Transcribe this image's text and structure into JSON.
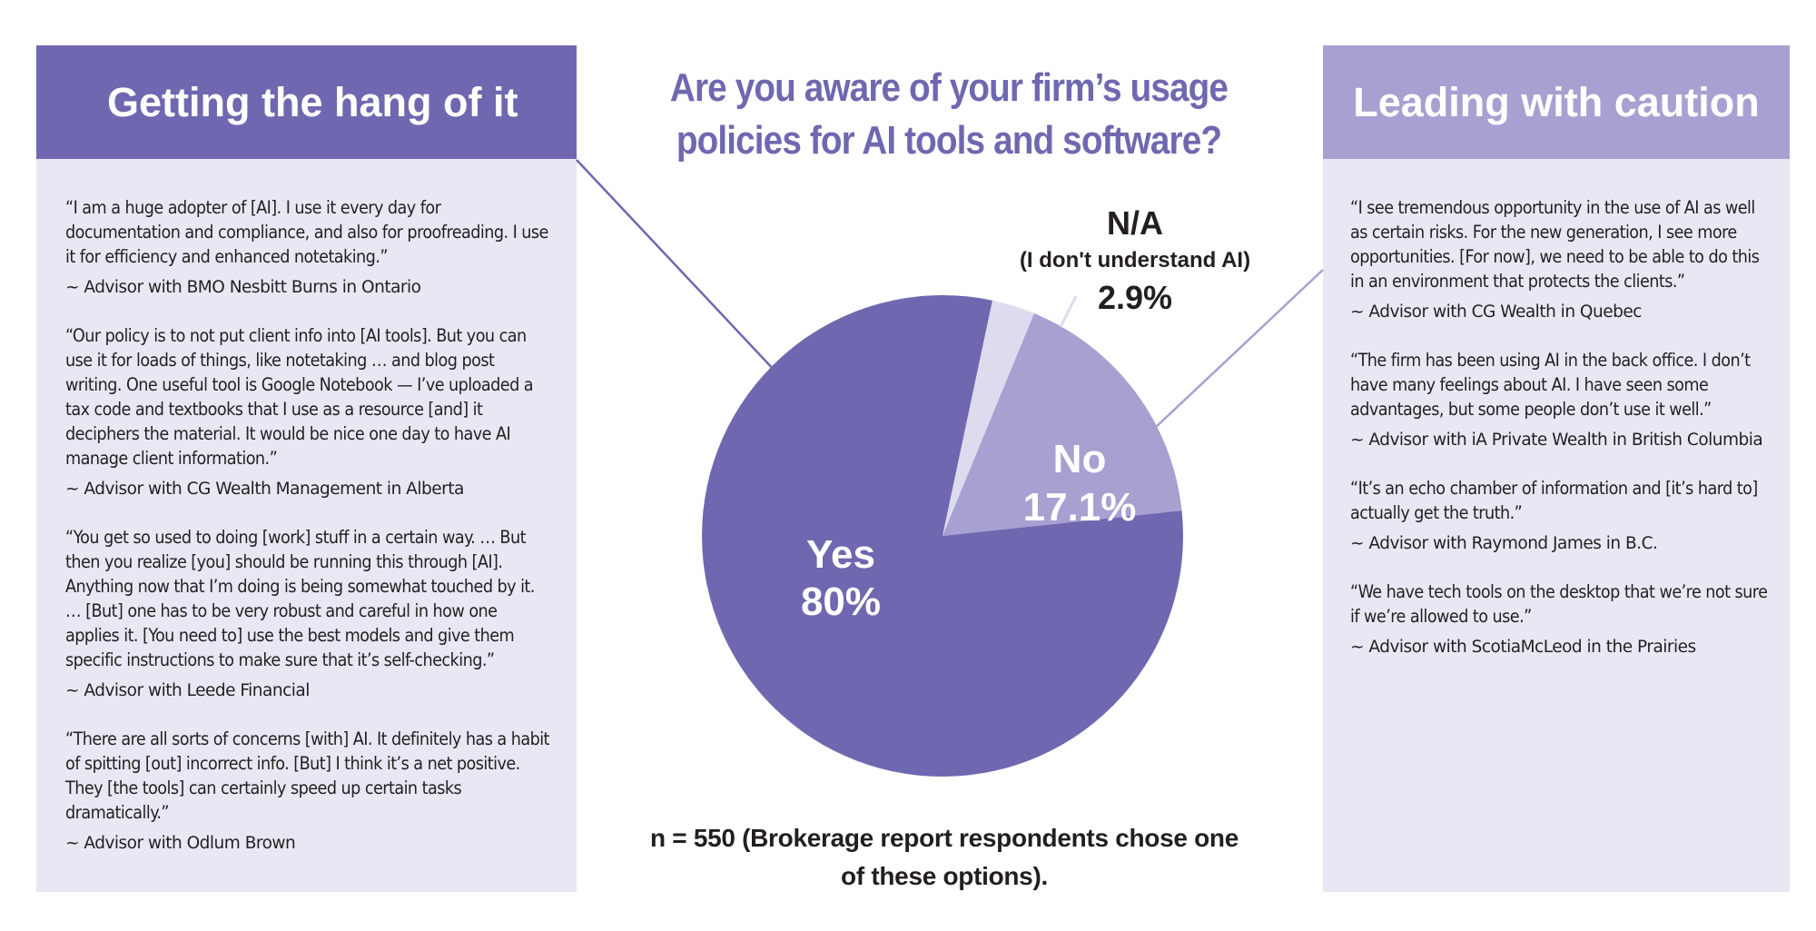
{
  "left_panel": {
    "heading": "Getting the hang of it",
    "quotes": [
      {
        "text": "“I am a huge adopter of [AI]. I use it every day for documentation and compliance, and also for proofreading. I use it for efficiency and enhanced notetaking.”",
        "attribution": "~ Advisor with BMO Nesbitt Burns in Ontario"
      },
      {
        "text": "“Our policy is to not put client info into [AI tools]. But you can use it for loads of things, like notetaking … and blog post writing. One useful tool is Google Notebook — I’ve uploaded a tax code and textbooks that I use as a resource [and] it deciphers the material. It would be nice one day to have AI manage client information.”",
        "attribution": "~ Advisor with CG Wealth Management in Alberta"
      },
      {
        "text": "“You get so used to doing [work] stuff in a certain way. … But then you realize [you] should be running this through [AI]. Anything now that I’m doing is being somewhat touched by it. … [But] one has to be very robust and careful in how one applies it. [You need to] use the best models and give them specific instructions to make sure that it’s self-checking.”",
        "attribution": "~ Advisor with Leede Financial"
      },
      {
        "text": "“There are all sorts of concerns [with] AI. It definitely has a habit of spitting [out] incorrect info. [But] I think it’s a net positive. They [the tools] can certainly speed up certain tasks dramatically.”",
        "attribution": "~ Advisor with Odlum Brown"
      }
    ]
  },
  "right_panel": {
    "heading": "Leading with caution",
    "quotes": [
      {
        "text": "“I see tremendous opportunity in the use of AI as well as certain risks. For the new generation, I see more opportunities. [For now], we need to be able to do this in an environment that protects the clients.”",
        "attribution": "~ Advisor with CG Wealth in Quebec"
      },
      {
        "text": "“The firm has been using AI in the back office. I don’t have many feelings about AI. I have seen some advantages, but some people don’t use it well.”",
        "attribution": "~ Advisor with iA Private Wealth in British Columbia"
      },
      {
        "text": "“It’s an echo chamber of information and [it’s hard to] actually get the truth.”",
        "attribution": "~ Advisor with Raymond James in B.C."
      },
      {
        "text": "“We have tech tools on the desktop that we’re not sure if we’re allowed to use.”",
        "attribution": "~ Advisor with ScotiaMcLeod in the Prairies"
      }
    ]
  },
  "chart_data": {
    "type": "pie",
    "title": "Are you aware of your firm’s usage policies for AI tools and software?",
    "slices": [
      {
        "label": "Yes",
        "value": 80,
        "value_label": "80%",
        "color": "#6f68b0"
      },
      {
        "label": "N/A",
        "sublabel": "(I don't understand AI)",
        "value": 2.9,
        "value_label": "2.9%",
        "color": "#dedbef"
      },
      {
        "label": "No",
        "value": 17.1,
        "value_label": "17.1%",
        "color": "#a6a1d1"
      }
    ],
    "note": "n = 550 (Brokerage report respondents chose one of these options)."
  },
  "colors": {
    "accent": "#6f68b0",
    "accent_light": "#a6a1d1",
    "panel_bg": "#e9e7f3"
  }
}
